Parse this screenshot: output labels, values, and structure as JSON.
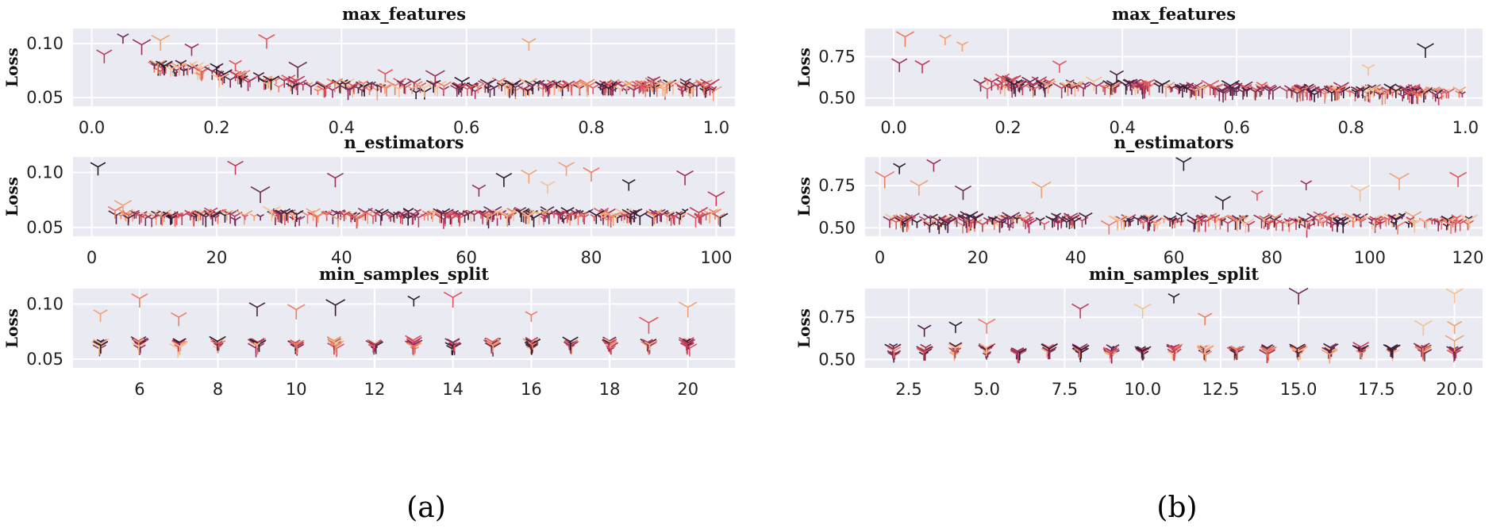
{
  "figure": {
    "captions": [
      "(a)",
      "(b)"
    ],
    "palette": [
      "#2b1c2e",
      "#4b2140",
      "#722a55",
      "#9c2f5c",
      "#c33a5b",
      "#e2545c",
      "#ee7d61",
      "#f3a071",
      "#f6c08f"
    ]
  },
  "chart_data": [
    {
      "type": "scatter",
      "panel": "a",
      "title": "max_features",
      "xlabel": "",
      "ylabel": "Loss",
      "xlim": [
        -0.03,
        1.03
      ],
      "ylim": [
        0.042,
        0.114
      ],
      "xticks": [
        0.0,
        0.2,
        0.4,
        0.6,
        0.8,
        1.0
      ],
      "xtick_labels": [
        "0.0",
        "0.2",
        "0.4",
        "0.6",
        "0.8",
        "1.0"
      ],
      "yticks": [
        0.05,
        0.1
      ],
      "ytick_labels": [
        "0.05",
        "0.10"
      ],
      "points": [
        [
          0.02,
          0.09
        ],
        [
          0.05,
          0.106
        ],
        [
          0.08,
          0.099
        ],
        [
          0.11,
          0.103
        ],
        [
          0.16,
          0.096
        ],
        [
          0.14,
          0.078
        ],
        [
          0.2,
          0.078
        ],
        [
          0.28,
          0.104
        ],
        [
          0.7,
          0.101
        ],
        [
          0.23,
          0.081
        ],
        [
          0.33,
          0.078
        ],
        [
          0.47,
          0.072
        ],
        [
          0.55,
          0.07
        ],
        [
          0.9,
          0.066
        ],
        [
          0.99,
          0.062
        ]
      ],
      "cluster": {
        "x_min": 0.1,
        "x_max": 1.0,
        "y_mean": 0.06,
        "y_spread": 0.006,
        "n": 260,
        "trend": "decreasing-then-flat"
      }
    },
    {
      "type": "scatter",
      "panel": "a",
      "title": "n_estimators",
      "xlabel": "",
      "ylabel": "Loss",
      "xlim": [
        -3,
        103
      ],
      "ylim": [
        0.042,
        0.114
      ],
      "xticks": [
        0,
        20,
        40,
        60,
        80,
        100
      ],
      "xtick_labels": [
        "0",
        "20",
        "40",
        "60",
        "80",
        "100"
      ],
      "yticks": [
        0.05,
        0.1
      ],
      "ytick_labels": [
        "0.05",
        "0.10"
      ],
      "points": [
        [
          1,
          0.105
        ],
        [
          23,
          0.106
        ],
        [
          39,
          0.095
        ],
        [
          27,
          0.082
        ],
        [
          66,
          0.095
        ],
        [
          70,
          0.098
        ],
        [
          76,
          0.105
        ],
        [
          80,
          0.1
        ],
        [
          86,
          0.09
        ],
        [
          95,
          0.097
        ],
        [
          100,
          0.078
        ],
        [
          5,
          0.07
        ],
        [
          62,
          0.085
        ],
        [
          73,
          0.088
        ]
      ],
      "cluster": {
        "x_min": 2,
        "x_max": 101,
        "y_mean": 0.061,
        "y_spread": 0.005,
        "n": 260,
        "trend": "flat"
      }
    },
    {
      "type": "scatter",
      "panel": "a",
      "title": "min_samples_split",
      "xlabel": "",
      "ylabel": "Loss",
      "xlim": [
        4.3,
        21.2
      ],
      "ylim": [
        0.042,
        0.114
      ],
      "xticks": [
        6,
        8,
        10,
        12,
        14,
        16,
        18,
        20
      ],
      "xtick_labels": [
        "6",
        "8",
        "10",
        "12",
        "14",
        "16",
        "18",
        "20"
      ],
      "yticks": [
        0.05,
        0.1
      ],
      "ytick_labels": [
        "0.05",
        "0.10"
      ],
      "points": [
        [
          6,
          0.105
        ],
        [
          7,
          0.088
        ],
        [
          9,
          0.097
        ],
        [
          10,
          0.095
        ],
        [
          11,
          0.099
        ],
        [
          13,
          0.104
        ],
        [
          14,
          0.106
        ],
        [
          19,
          0.083
        ],
        [
          20,
          0.097
        ],
        [
          5,
          0.091
        ],
        [
          16,
          0.09
        ]
      ],
      "categories_x": [
        5,
        6,
        7,
        8,
        9,
        10,
        11,
        12,
        13,
        14,
        15,
        16,
        17,
        18,
        19,
        20
      ],
      "cluster": {
        "y_mean": 0.063,
        "y_spread": 0.005,
        "per_x": 12
      }
    },
    {
      "type": "scatter",
      "panel": "b",
      "title": "max_features",
      "xlabel": "",
      "ylabel": "Loss",
      "xlim": [
        -0.05,
        1.03
      ],
      "ylim": [
        0.45,
        0.92
      ],
      "xticks": [
        0.0,
        0.2,
        0.4,
        0.6,
        0.8,
        1.0
      ],
      "xtick_labels": [
        "0.0",
        "0.2",
        "0.4",
        "0.6",
        "0.8",
        "1.0"
      ],
      "yticks": [
        0.5,
        0.75
      ],
      "ytick_labels": [
        "0.50",
        "0.75"
      ],
      "points": [
        [
          0.02,
          0.87
        ],
        [
          0.09,
          0.86
        ],
        [
          0.01,
          0.71
        ],
        [
          0.05,
          0.7
        ],
        [
          0.12,
          0.82
        ],
        [
          0.93,
          0.8
        ],
        [
          0.83,
          0.68
        ],
        [
          0.19,
          0.62
        ],
        [
          0.29,
          0.7
        ],
        [
          0.39,
          0.64
        ],
        [
          0.47,
          0.58
        ]
      ],
      "cluster": {
        "x_min": 0.15,
        "x_max": 1.0,
        "y_mean": 0.53,
        "y_spread": 0.04,
        "n": 240,
        "trend": "decreasing"
      }
    },
    {
      "type": "scatter",
      "panel": "b",
      "title": "n_estimators",
      "xlabel": "",
      "ylabel": "Loss",
      "xlim": [
        -3,
        123
      ],
      "ylim": [
        0.45,
        0.92
      ],
      "xticks": [
        0,
        20,
        40,
        60,
        80,
        100,
        120
      ],
      "xtick_labels": [
        "0",
        "20",
        "40",
        "60",
        "80",
        "100",
        "120"
      ],
      "yticks": [
        0.5,
        0.75
      ],
      "ytick_labels": [
        "0.50",
        "0.75"
      ],
      "points": [
        [
          11,
          0.88
        ],
        [
          62,
          0.89
        ],
        [
          1,
          0.8
        ],
        [
          4,
          0.86
        ],
        [
          8,
          0.75
        ],
        [
          17,
          0.72
        ],
        [
          33,
          0.74
        ],
        [
          70,
          0.66
        ],
        [
          77,
          0.7
        ],
        [
          87,
          0.76
        ],
        [
          98,
          0.72
        ],
        [
          106,
          0.79
        ],
        [
          118,
          0.8
        ]
      ],
      "cluster": {
        "x_min": 2,
        "x_max": 121,
        "y_mean": 0.54,
        "y_spread": 0.045,
        "n": 240,
        "trend": "flat"
      }
    },
    {
      "type": "scatter",
      "panel": "b",
      "title": "min_samples_split",
      "xlabel": "",
      "ylabel": "Loss",
      "xlim": [
        1.1,
        20.9
      ],
      "ylim": [
        0.45,
        0.92
      ],
      "xticks": [
        2.5,
        5.0,
        7.5,
        10.0,
        12.5,
        15.0,
        17.5,
        20.0
      ],
      "xtick_labels": [
        "2.5",
        "5.0",
        "7.5",
        "10.0",
        "12.5",
        "15.0",
        "17.5",
        "20.0"
      ],
      "yticks": [
        0.5,
        0.75
      ],
      "ytick_labels": [
        "0.50",
        "0.75"
      ],
      "points": [
        [
          15,
          0.89
        ],
        [
          20,
          0.89
        ],
        [
          11,
          0.87
        ],
        [
          8,
          0.8
        ],
        [
          10,
          0.8
        ],
        [
          12,
          0.75
        ],
        [
          19,
          0.7
        ],
        [
          20,
          0.7
        ],
        [
          3,
          0.68
        ],
        [
          4,
          0.7
        ],
        [
          5,
          0.71
        ],
        [
          20,
          0.61
        ]
      ],
      "categories_x": [
        2,
        3,
        4,
        5,
        6,
        7,
        8,
        9,
        10,
        11,
        12,
        13,
        14,
        15,
        16,
        17,
        18,
        19,
        20
      ],
      "cluster": {
        "y_mean": 0.55,
        "y_spread": 0.04,
        "per_x": 10
      }
    }
  ]
}
